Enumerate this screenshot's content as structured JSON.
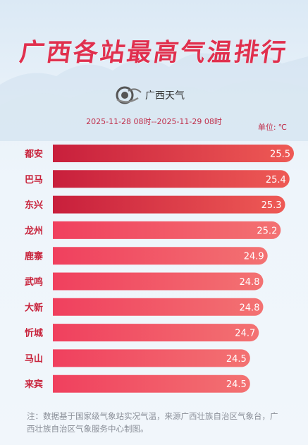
{
  "title": "广西各站最高气温排行",
  "brand": {
    "logo": "guangxi-weather-logo",
    "name": "广西天气"
  },
  "time_range": "2025-11-28 08时--2025-11-29 08时",
  "unit_label": "单位:",
  "unit_value": "℃",
  "colors": {
    "title": "#e0304e",
    "top3_bar_start": "#c81f3c",
    "top3_bar_end": "#ee5a55",
    "bar_start": "#f0405e",
    "bar_end": "#f37272",
    "label": "#c8243c"
  },
  "chart_data": {
    "type": "bar",
    "orientation": "horizontal",
    "categories": [
      "都安",
      "巴马",
      "东兴",
      "龙州",
      "鹿寨",
      "武鸣",
      "大新",
      "忻城",
      "马山",
      "来宾"
    ],
    "values": [
      25.5,
      25.4,
      25.3,
      25.2,
      24.9,
      24.8,
      24.8,
      24.7,
      24.5,
      24.5
    ],
    "value_labels": [
      "25.5",
      "25.4",
      "25.3",
      "25.2",
      "24.9",
      "24.8",
      "24.8",
      "24.7",
      "24.5",
      "24.5"
    ],
    "unit": "℃",
    "title": "广西各站最高气温排行",
    "xlabel": "",
    "ylabel": "",
    "highlight_top": 3,
    "grid": false,
    "legend": "none"
  },
  "footnote": "注：数据基于国家级气象站实况气温，来源广西壮族自治区气象台，广西壮族自治区气象服务中心制图。"
}
